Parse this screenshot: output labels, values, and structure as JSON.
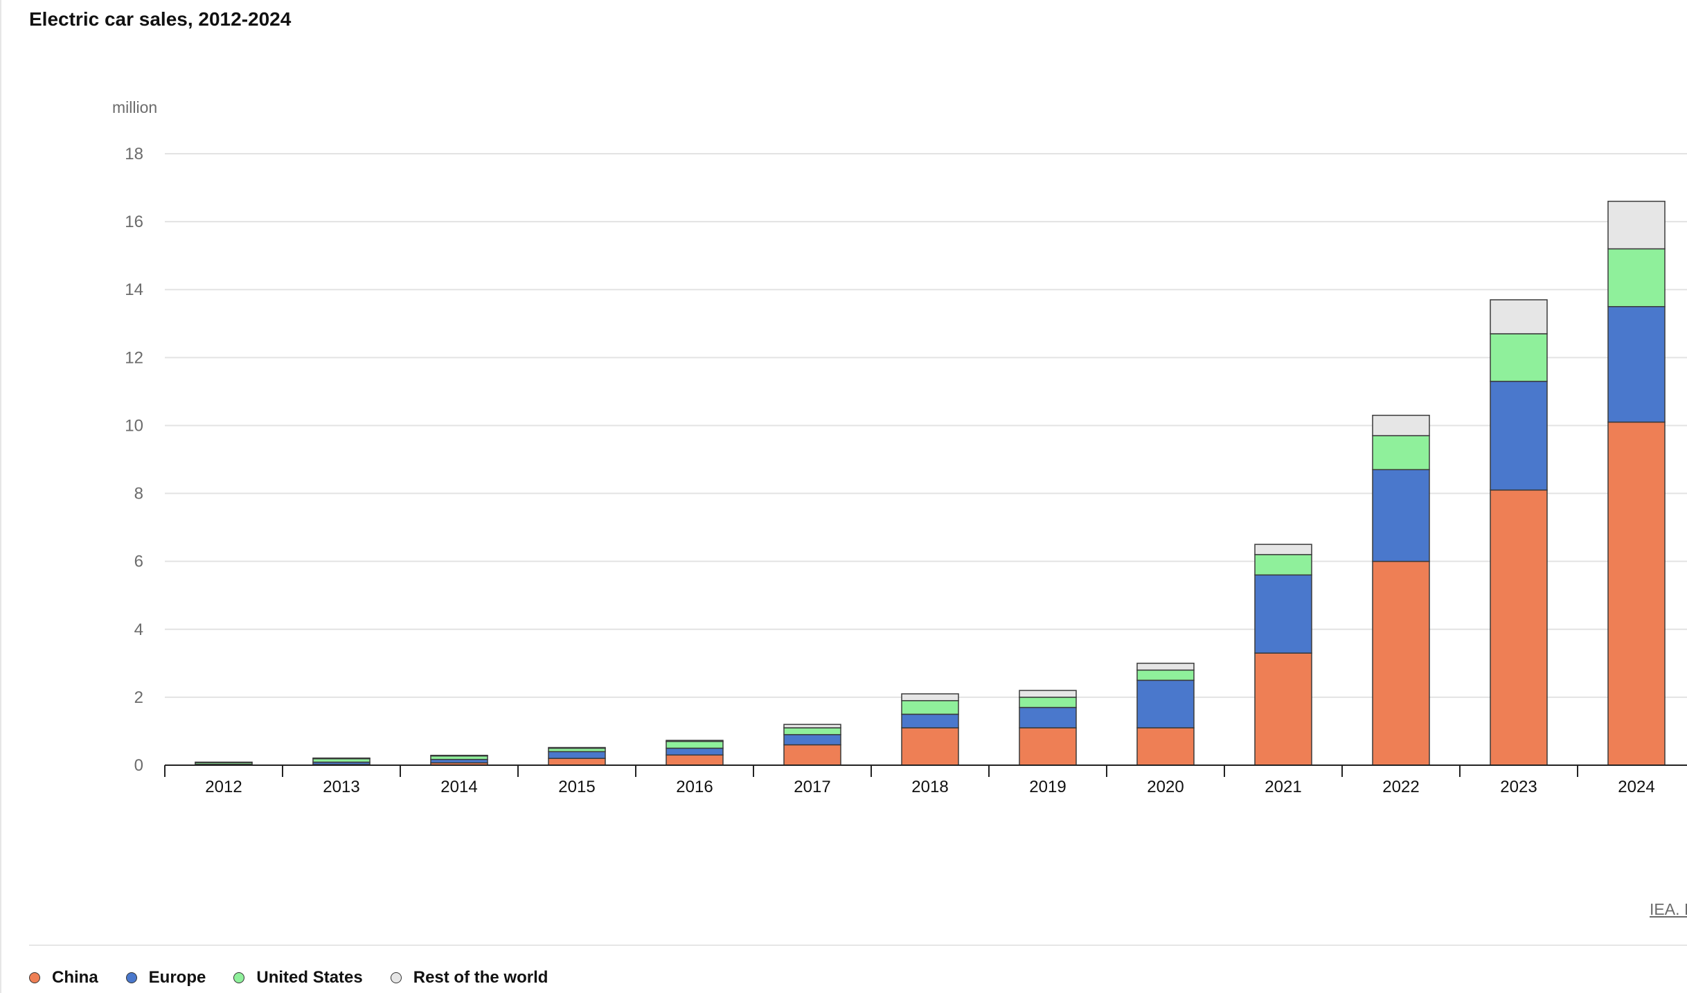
{
  "title": "Electric car sales, 2012-2024",
  "source_link": "IEA. I",
  "chart_data": {
    "type": "bar",
    "stacked": true,
    "title": "Electric car sales, 2012-2024",
    "ylabel": "million",
    "xlabel": "",
    "ylim": [
      0,
      18
    ],
    "yticks": [
      0,
      2,
      4,
      6,
      8,
      10,
      12,
      14,
      16,
      18
    ],
    "grid": true,
    "legend_position": "bottom-left",
    "categories": [
      "2012",
      "2013",
      "2014",
      "2015",
      "2016",
      "2017",
      "2018",
      "2019",
      "2020",
      "2021",
      "2022",
      "2023",
      "2024"
    ],
    "series": [
      {
        "name": "China",
        "color": "#ee7f55",
        "values": [
          0.01,
          0.02,
          0.07,
          0.2,
          0.3,
          0.6,
          1.1,
          1.1,
          1.1,
          3.3,
          6.0,
          8.1,
          10.1
        ]
      },
      {
        "name": "Europe",
        "color": "#4a78cc",
        "values": [
          0.02,
          0.07,
          0.1,
          0.2,
          0.2,
          0.3,
          0.4,
          0.6,
          1.4,
          2.3,
          2.7,
          3.2,
          3.4
        ]
      },
      {
        "name": "United States",
        "color": "#8ff09b",
        "values": [
          0.05,
          0.1,
          0.1,
          0.1,
          0.2,
          0.2,
          0.4,
          0.3,
          0.3,
          0.6,
          1.0,
          1.4,
          1.7
        ]
      },
      {
        "name": "Rest of the world",
        "color": "#e6e6e6",
        "values": [
          0.01,
          0.02,
          0.02,
          0.02,
          0.03,
          0.1,
          0.2,
          0.2,
          0.2,
          0.3,
          0.6,
          1.0,
          1.4
        ]
      }
    ]
  }
}
